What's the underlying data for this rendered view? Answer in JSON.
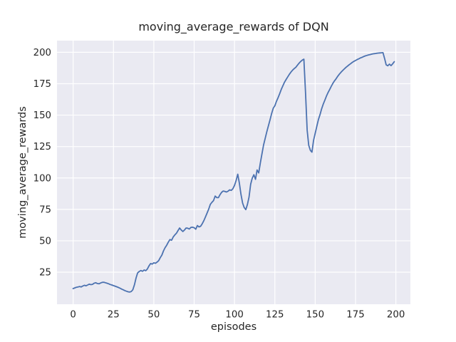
{
  "title": "moving_average_rewards of DQN",
  "colors": {
    "line": "#4c72b0",
    "plot_background": "#eaeaf2",
    "grid": "#ffffff",
    "text": "#262626",
    "figure_background": "#ffffff"
  },
  "chart_data": {
    "type": "line",
    "title": "moving_average_rewards of DQN",
    "xlabel": "episodes",
    "ylabel": "moving_average_rewards",
    "xlim": [
      -10,
      209
    ],
    "ylim": [
      -0.5,
      209.3
    ],
    "xticks": [
      0,
      25,
      50,
      75,
      100,
      125,
      150,
      175,
      200
    ],
    "yticks": [
      25,
      50,
      75,
      100,
      125,
      150,
      175,
      200
    ],
    "grid": true,
    "legend": "none",
    "line_color": "#4c72b0",
    "plot_background": "#eaeaf2",
    "series": [
      {
        "name": "moving_average_rewards",
        "points": [
          [
            0,
            12
          ],
          [
            1,
            12.5
          ],
          [
            2,
            13
          ],
          [
            3,
            13.2
          ],
          [
            4,
            13.6
          ],
          [
            5,
            13.3
          ],
          [
            6,
            14
          ],
          [
            7,
            14.6
          ],
          [
            8,
            14.2
          ],
          [
            9,
            14.8
          ],
          [
            10,
            15.5
          ],
          [
            11,
            15.1
          ],
          [
            12,
            15.3
          ],
          [
            13,
            16.2
          ],
          [
            14,
            16.6
          ],
          [
            15,
            16
          ],
          [
            16,
            15.8
          ],
          [
            17,
            16.4
          ],
          [
            18,
            16.9
          ],
          [
            19,
            17
          ],
          [
            20,
            16.6
          ],
          [
            21,
            16.2
          ],
          [
            22,
            15.8
          ],
          [
            23,
            15.2
          ],
          [
            24,
            14.8
          ],
          [
            25,
            14.3
          ],
          [
            26,
            13.9
          ],
          [
            27,
            13.4
          ],
          [
            28,
            12.9
          ],
          [
            29,
            12.3
          ],
          [
            30,
            11.6
          ],
          [
            31,
            11
          ],
          [
            32,
            10.4
          ],
          [
            33,
            9.9
          ],
          [
            34,
            9.4
          ],
          [
            35,
            9.2
          ],
          [
            36,
            9.6
          ],
          [
            37,
            11
          ],
          [
            38,
            15
          ],
          [
            39,
            20.5
          ],
          [
            40,
            24.5
          ],
          [
            41,
            25.6
          ],
          [
            42,
            26.3
          ],
          [
            43,
            25.7
          ],
          [
            44,
            26.8
          ],
          [
            45,
            26.2
          ],
          [
            46,
            27.5
          ],
          [
            47,
            30
          ],
          [
            48,
            31.9
          ],
          [
            49,
            31.4
          ],
          [
            50,
            32.5
          ],
          [
            51,
            32.1
          ],
          [
            52,
            33
          ],
          [
            53,
            34.2
          ],
          [
            54,
            36.5
          ],
          [
            55,
            38.6
          ],
          [
            56,
            42
          ],
          [
            57,
            44.5
          ],
          [
            58,
            46.5
          ],
          [
            59,
            49
          ],
          [
            60,
            51
          ],
          [
            61,
            50.4
          ],
          [
            62,
            53
          ],
          [
            63,
            54.6
          ],
          [
            64,
            56
          ],
          [
            65,
            58.2
          ],
          [
            66,
            60.2
          ],
          [
            67,
            58.6
          ],
          [
            68,
            57.4
          ],
          [
            69,
            58.6
          ],
          [
            70,
            60.2
          ],
          [
            71,
            60
          ],
          [
            72,
            59.4
          ],
          [
            73,
            60.6
          ],
          [
            74,
            60.8
          ],
          [
            75,
            60.4
          ],
          [
            76,
            59.2
          ],
          [
            77,
            62.1
          ],
          [
            78,
            61
          ],
          [
            79,
            61.6
          ],
          [
            80,
            63.5
          ],
          [
            81,
            66
          ],
          [
            82,
            69
          ],
          [
            83,
            72
          ],
          [
            84,
            75.2
          ],
          [
            85,
            79
          ],
          [
            86,
            80.6
          ],
          [
            87,
            82
          ],
          [
            88,
            85.6
          ],
          [
            89,
            84.4
          ],
          [
            90,
            84.3
          ],
          [
            91,
            86.6
          ],
          [
            92,
            88.5
          ],
          [
            93,
            89.6
          ],
          [
            94,
            89.3
          ],
          [
            95,
            88.8
          ],
          [
            96,
            89.5
          ],
          [
            97,
            90.5
          ],
          [
            98,
            90.1
          ],
          [
            99,
            91.5
          ],
          [
            100,
            94
          ],
          [
            101,
            98
          ],
          [
            102,
            103
          ],
          [
            103,
            96
          ],
          [
            104,
            87
          ],
          [
            105,
            80
          ],
          [
            106,
            76.5
          ],
          [
            107,
            74.8
          ],
          [
            108,
            79
          ],
          [
            109,
            84.7
          ],
          [
            110,
            95
          ],
          [
            111,
            99.8
          ],
          [
            112,
            102.6
          ],
          [
            113,
            98.9
          ],
          [
            114,
            106.4
          ],
          [
            115,
            104
          ],
          [
            116,
            112
          ],
          [
            117,
            119
          ],
          [
            118,
            126.2
          ],
          [
            119,
            131.5
          ],
          [
            120,
            136.6
          ],
          [
            121,
            141.5
          ],
          [
            122,
            146.3
          ],
          [
            123,
            151.2
          ],
          [
            124,
            155.5
          ],
          [
            125,
            157.5
          ],
          [
            126,
            161
          ],
          [
            127,
            163.9
          ],
          [
            128,
            167
          ],
          [
            129,
            170.5
          ],
          [
            130,
            173.4
          ],
          [
            131,
            176.2
          ],
          [
            132,
            178.4
          ],
          [
            133,
            180.5
          ],
          [
            134,
            182.5
          ],
          [
            135,
            184.3
          ],
          [
            136,
            185.8
          ],
          [
            137,
            187
          ],
          [
            138,
            188.1
          ],
          [
            139,
            189.8
          ],
          [
            140,
            191.3
          ],
          [
            141,
            192.7
          ],
          [
            142,
            193.8
          ],
          [
            143,
            194.5
          ],
          [
            144,
            168
          ],
          [
            145,
            138
          ],
          [
            146,
            126
          ],
          [
            147,
            122
          ],
          [
            148,
            120.5
          ],
          [
            149,
            130
          ],
          [
            150,
            135.6
          ],
          [
            151,
            141
          ],
          [
            152,
            146.5
          ],
          [
            153,
            150.5
          ],
          [
            154,
            155
          ],
          [
            155,
            158.8
          ],
          [
            156,
            162
          ],
          [
            157,
            165.2
          ],
          [
            158,
            168
          ],
          [
            159,
            170.5
          ],
          [
            160,
            173
          ],
          [
            161,
            175.4
          ],
          [
            162,
            177.4
          ],
          [
            163,
            179
          ],
          [
            164,
            181
          ],
          [
            165,
            182.6
          ],
          [
            166,
            184.1
          ],
          [
            167,
            185.5
          ],
          [
            168,
            186.7
          ],
          [
            169,
            187.9
          ],
          [
            170,
            189
          ],
          [
            171,
            190
          ],
          [
            172,
            191
          ],
          [
            173,
            192
          ],
          [
            174,
            192.8
          ],
          [
            175,
            193.5
          ],
          [
            176,
            194.2
          ],
          [
            177,
            194.8
          ],
          [
            178,
            195.5
          ],
          [
            179,
            196
          ],
          [
            180,
            196.6
          ],
          [
            181,
            197.1
          ],
          [
            182,
            197.5
          ],
          [
            183,
            197.9
          ],
          [
            184,
            198.2
          ],
          [
            185,
            198.5
          ],
          [
            186,
            198.8
          ],
          [
            187,
            199
          ],
          [
            188,
            199.2
          ],
          [
            189,
            199.4
          ],
          [
            190,
            199.5
          ],
          [
            191,
            199.6
          ],
          [
            192,
            199.7
          ],
          [
            193,
            195
          ],
          [
            194,
            190
          ],
          [
            195,
            189.3
          ],
          [
            196,
            190.6
          ],
          [
            197,
            189.4
          ],
          [
            198,
            190.8
          ],
          [
            199,
            192.5
          ]
        ]
      }
    ]
  }
}
